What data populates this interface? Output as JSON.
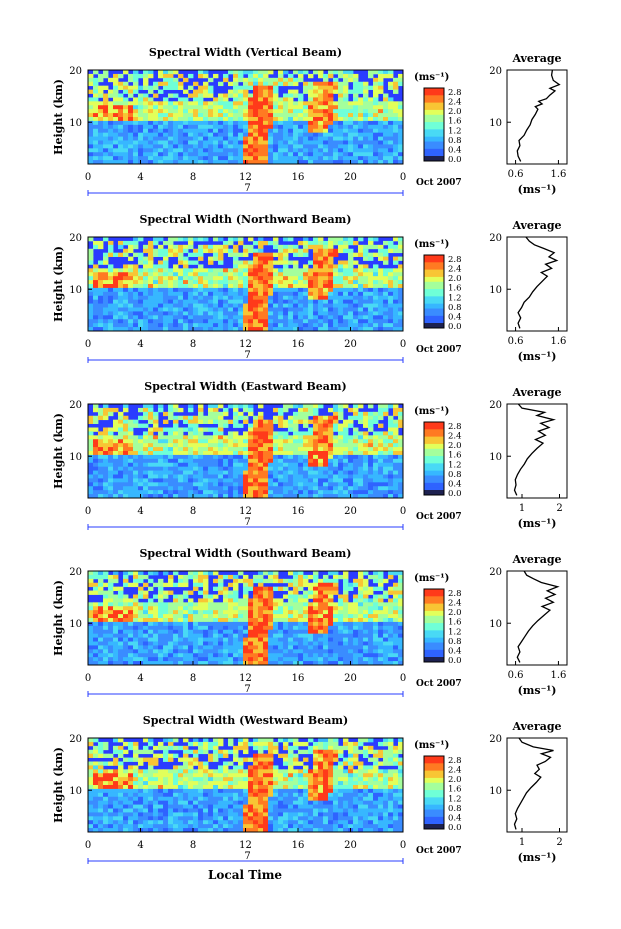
{
  "figure": {
    "xlabel": "Local Time",
    "date_label": "Oct 2007",
    "day_label": "7",
    "unit_label": "(ms⁻¹)",
    "colorbar_ticks": [
      "2.8",
      "2.4",
      "2.0",
      "1.6",
      "1.2",
      "0.8",
      "0.4",
      "0.0"
    ],
    "colors": {
      "low": "#2a3cff",
      "mid_low": "#37b7ff",
      "mid": "#6fffd7",
      "mid_high": "#f8f84a",
      "high": "#ff3a1a",
      "dark": "#1d2150"
    }
  },
  "chart_data": [
    {
      "type": "heatmap",
      "title": "Spectral Width (Vertical Beam)",
      "ylabel": "Height (km)",
      "x_ticks": [
        "0",
        "4",
        "8",
        "12",
        "16",
        "20",
        "0"
      ],
      "y_ticks": [
        "20",
        "10"
      ],
      "xlim": [
        0,
        24
      ],
      "ylim": [
        2,
        20
      ],
      "profile": {
        "title": "Average",
        "xlabel": "(ms⁻¹)",
        "x_ticks": [
          "0.6",
          "1.6"
        ],
        "y_ticks": [
          "20",
          "10"
        ],
        "xlim": [
          0.4,
          1.8
        ],
        "points": [
          [
            0.72,
            2.5
          ],
          [
            0.66,
            3.5
          ],
          [
            0.64,
            4.5
          ],
          [
            0.7,
            5.5
          ],
          [
            0.68,
            6.5
          ],
          [
            0.8,
            7.5
          ],
          [
            0.86,
            8.5
          ],
          [
            0.94,
            9.5
          ],
          [
            0.98,
            10.5
          ],
          [
            1.06,
            11.5
          ],
          [
            1.12,
            12.5
          ],
          [
            1.06,
            13
          ],
          [
            1.22,
            13.5
          ],
          [
            1.14,
            14
          ],
          [
            1.32,
            14.5
          ],
          [
            1.4,
            15.2
          ],
          [
            1.52,
            16
          ],
          [
            1.4,
            16.5
          ],
          [
            1.62,
            17.2
          ],
          [
            1.48,
            18
          ],
          [
            1.44,
            19
          ],
          [
            1.46,
            20
          ]
        ]
      }
    },
    {
      "type": "heatmap",
      "title": "Spectral Width (Northward Beam)",
      "ylabel": "Height (km)",
      "x_ticks": [
        "0",
        "4",
        "8",
        "12",
        "16",
        "20",
        "0"
      ],
      "y_ticks": [
        "20",
        "10"
      ],
      "xlim": [
        0,
        24
      ],
      "ylim": [
        2,
        20
      ],
      "profile": {
        "title": "Average",
        "xlabel": "(ms⁻¹)",
        "x_ticks": [
          "0.6",
          "1.6"
        ],
        "y_ticks": [
          "20",
          "10"
        ],
        "xlim": [
          0.4,
          1.8
        ],
        "points": [
          [
            0.7,
            2.5
          ],
          [
            0.66,
            3.5
          ],
          [
            0.72,
            4.5
          ],
          [
            0.66,
            5.5
          ],
          [
            0.74,
            6.5
          ],
          [
            0.8,
            7.5
          ],
          [
            0.92,
            8.5
          ],
          [
            1.0,
            9.5
          ],
          [
            1.1,
            10.5
          ],
          [
            1.22,
            11.5
          ],
          [
            1.34,
            12.5
          ],
          [
            1.2,
            13.2
          ],
          [
            1.44,
            14
          ],
          [
            1.3,
            14.8
          ],
          [
            1.56,
            15.5
          ],
          [
            1.38,
            16.2
          ],
          [
            1.5,
            17
          ],
          [
            1.26,
            17.8
          ],
          [
            1.04,
            18.5
          ],
          [
            0.92,
            19.2
          ],
          [
            0.84,
            20
          ]
        ]
      }
    },
    {
      "type": "heatmap",
      "title": "Spectral Width (Eastward Beam)",
      "ylabel": "Height (km)",
      "x_ticks": [
        "0",
        "4",
        "8",
        "12",
        "16",
        "20",
        "0"
      ],
      "y_ticks": [
        "20",
        "10"
      ],
      "xlim": [
        0,
        24
      ],
      "ylim": [
        2,
        20
      ],
      "profile": {
        "title": "Average",
        "xlabel": "(ms⁻¹)",
        "x_ticks": [
          "1",
          "2"
        ],
        "y_ticks": [
          "20",
          "10"
        ],
        "xlim": [
          0.6,
          2.2
        ],
        "points": [
          [
            0.86,
            2.5
          ],
          [
            0.8,
            3.5
          ],
          [
            0.84,
            4.5
          ],
          [
            0.82,
            5.5
          ],
          [
            0.88,
            6.5
          ],
          [
            0.96,
            7.5
          ],
          [
            1.06,
            8.5
          ],
          [
            1.14,
            9.5
          ],
          [
            1.26,
            10.5
          ],
          [
            1.4,
            11.5
          ],
          [
            1.56,
            12.5
          ],
          [
            1.36,
            13.2
          ],
          [
            1.62,
            14
          ],
          [
            1.44,
            14.8
          ],
          [
            1.72,
            15.5
          ],
          [
            1.5,
            16.3
          ],
          [
            1.84,
            17
          ],
          [
            1.4,
            17.8
          ],
          [
            1.6,
            18.4
          ],
          [
            1.0,
            19.2
          ],
          [
            0.9,
            20
          ]
        ]
      }
    },
    {
      "type": "heatmap",
      "title": "Spectral Width (Southward Beam)",
      "ylabel": "Height (km)",
      "x_ticks": [
        "0",
        "4",
        "8",
        "12",
        "16",
        "20",
        "0"
      ],
      "y_ticks": [
        "20",
        "10"
      ],
      "xlim": [
        0,
        24
      ],
      "ylim": [
        2,
        20
      ],
      "profile": {
        "title": "Average",
        "xlabel": "(ms⁻¹)",
        "x_ticks": [
          "0.6",
          "1.6"
        ],
        "y_ticks": [
          "20",
          "10"
        ],
        "xlim": [
          0.4,
          1.8
        ],
        "points": [
          [
            0.7,
            2.5
          ],
          [
            0.64,
            3.5
          ],
          [
            0.7,
            4.5
          ],
          [
            0.66,
            5.5
          ],
          [
            0.74,
            6.5
          ],
          [
            0.82,
            7.5
          ],
          [
            0.9,
            8.5
          ],
          [
            1.0,
            9.5
          ],
          [
            1.12,
            10.5
          ],
          [
            1.26,
            11.5
          ],
          [
            1.4,
            12.5
          ],
          [
            1.22,
            13.2
          ],
          [
            1.48,
            14
          ],
          [
            1.3,
            14.8
          ],
          [
            1.52,
            15.5
          ],
          [
            1.34,
            16.2
          ],
          [
            1.58,
            17
          ],
          [
            1.2,
            17.8
          ],
          [
            1.02,
            18.5
          ],
          [
            0.86,
            19.2
          ],
          [
            0.8,
            20
          ]
        ]
      }
    },
    {
      "type": "heatmap",
      "title": "Spectral Width (Westward Beam)",
      "ylabel": "Height (km)",
      "x_ticks": [
        "0",
        "4",
        "8",
        "12",
        "16",
        "20",
        "0"
      ],
      "y_ticks": [
        "20",
        "10"
      ],
      "xlim": [
        0,
        24
      ],
      "ylim": [
        2,
        20
      ],
      "profile": {
        "title": "Average",
        "xlabel": "(ms⁻¹)",
        "x_ticks": [
          "1",
          "2"
        ],
        "y_ticks": [
          "20",
          "10"
        ],
        "xlim": [
          0.6,
          2.2
        ],
        "points": [
          [
            0.84,
            2.5
          ],
          [
            0.8,
            3.5
          ],
          [
            0.86,
            4.5
          ],
          [
            0.82,
            5.5
          ],
          [
            0.88,
            6.5
          ],
          [
            0.96,
            7.5
          ],
          [
            1.04,
            8.5
          ],
          [
            1.12,
            9.5
          ],
          [
            1.24,
            10.5
          ],
          [
            1.38,
            11.5
          ],
          [
            1.5,
            12.5
          ],
          [
            1.34,
            13.2
          ],
          [
            1.46,
            14
          ],
          [
            1.4,
            14.8
          ],
          [
            1.62,
            15.5
          ],
          [
            1.76,
            16.3
          ],
          [
            1.52,
            17
          ],
          [
            1.84,
            17.6
          ],
          [
            1.3,
            18.3
          ],
          [
            1.0,
            19.2
          ],
          [
            0.92,
            20
          ]
        ]
      }
    }
  ]
}
